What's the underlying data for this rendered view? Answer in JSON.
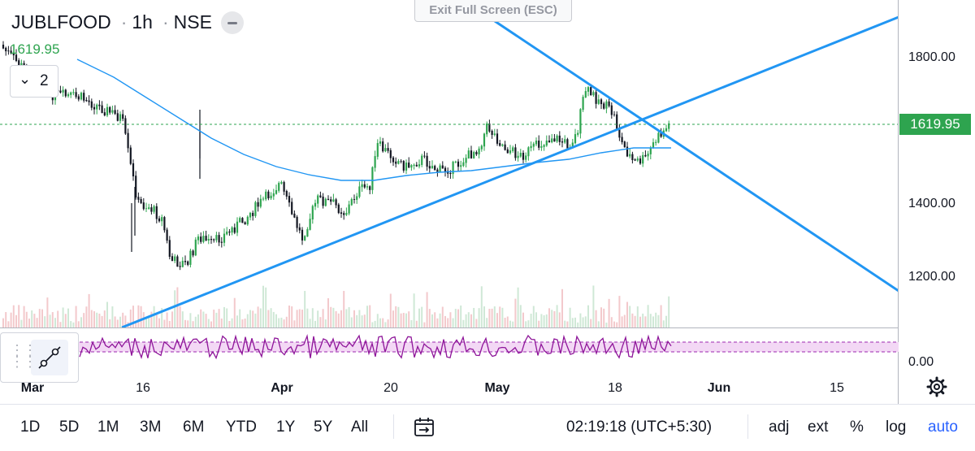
{
  "header": {
    "symbol": "JUBLFOOD",
    "interval": "1h",
    "exchange": "NSE",
    "last_price": "1619.95",
    "series_count": "2",
    "exit_fullscreen": "Exit Full Screen (ESC)"
  },
  "price_axis": {
    "labels": [
      "1800.00",
      "1400.00",
      "1200.00"
    ],
    "current_price_tag": "1619.95",
    "rsi_label": "0.00"
  },
  "time_axis": {
    "labels": [
      "Mar",
      "16",
      "Apr",
      "20",
      "May",
      "18",
      "Jun",
      "15"
    ]
  },
  "bottom_bar": {
    "ranges": [
      "1D",
      "5D",
      "1M",
      "3M",
      "6M",
      "YTD",
      "1Y",
      "5Y",
      "All"
    ],
    "clock": "02:19:18 (UTC+5:30)",
    "options": [
      "adj",
      "ext",
      "%",
      "log",
      "auto"
    ]
  },
  "icons": {
    "collapse": "minus-icon",
    "badge": "chevron-down-icon",
    "indicator": "line-tool-icon",
    "goto_date": "calendar-icon",
    "settings": "gear-icon"
  },
  "colors": {
    "up_candle": "#2ea44f",
    "down_candle": "#131722",
    "trendlines": "#2196f3",
    "moving_average": "#2196f3",
    "last_price_line": "#2ea44f",
    "rsi": "#8e1599",
    "accent": "#2962ff"
  }
}
